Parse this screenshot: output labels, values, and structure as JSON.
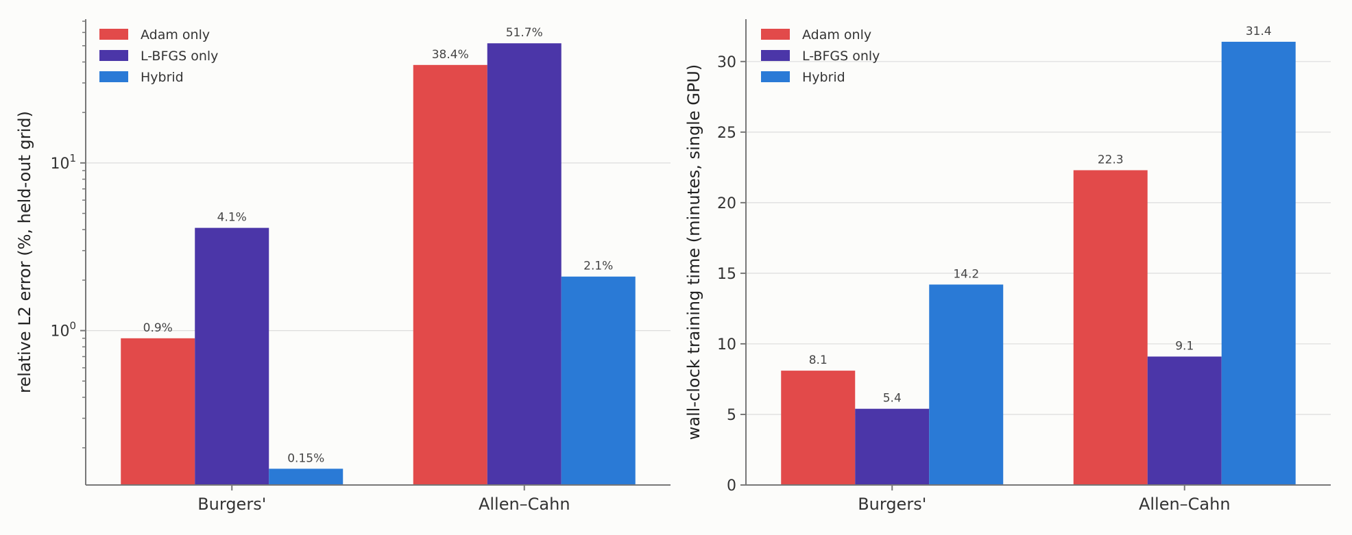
{
  "chart_data": [
    {
      "type": "bar",
      "categories": [
        "Burgers'",
        "Allen–Cahn"
      ],
      "series": [
        {
          "name": "Adam only",
          "values": [
            0.9,
            38.4
          ],
          "labels": [
            "0.9%",
            "38.4%"
          ],
          "color": "#e24a4a"
        },
        {
          "name": "L-BFGS only",
          "values": [
            4.1,
            51.7
          ],
          "labels": [
            "4.1%",
            "51.7%"
          ],
          "color": "#4b36a8"
        },
        {
          "name": "Hybrid",
          "values": [
            0.15,
            2.1
          ],
          "labels": [
            "0.15%",
            "2.1%"
          ],
          "color": "#2a7ad6"
        }
      ],
      "ylabel": "relative L2 error  (%, held-out grid)",
      "yscale": "log",
      "ylim": [
        0.12,
        72
      ],
      "yticks": [
        {
          "value": 1,
          "base": "10",
          "exp": "0"
        },
        {
          "value": 10,
          "base": "10",
          "exp": "1"
        }
      ],
      "grid": true,
      "legend": "top-left"
    },
    {
      "type": "bar",
      "categories": [
        "Burgers'",
        "Allen–Cahn"
      ],
      "series": [
        {
          "name": "Adam only",
          "values": [
            8.1,
            22.3
          ],
          "labels": [
            "8.1",
            "22.3"
          ],
          "color": "#e24a4a"
        },
        {
          "name": "L-BFGS only",
          "values": [
            5.4,
            9.1
          ],
          "labels": [
            "5.4",
            "9.1"
          ],
          "color": "#4b36a8"
        },
        {
          "name": "Hybrid",
          "values": [
            14.2,
            31.4
          ],
          "labels": [
            "14.2",
            "31.4"
          ],
          "color": "#2a7ad6"
        }
      ],
      "ylabel": "wall-clock training time  (minutes, single GPU)",
      "yscale": "linear",
      "ylim": [
        0,
        33
      ],
      "yticks": [
        {
          "value": 0,
          "label": "0"
        },
        {
          "value": 5,
          "label": "5"
        },
        {
          "value": 10,
          "label": "10"
        },
        {
          "value": 15,
          "label": "15"
        },
        {
          "value": 20,
          "label": "20"
        },
        {
          "value": 25,
          "label": "25"
        },
        {
          "value": 30,
          "label": "30"
        }
      ],
      "grid": true,
      "legend": "top-left"
    }
  ]
}
